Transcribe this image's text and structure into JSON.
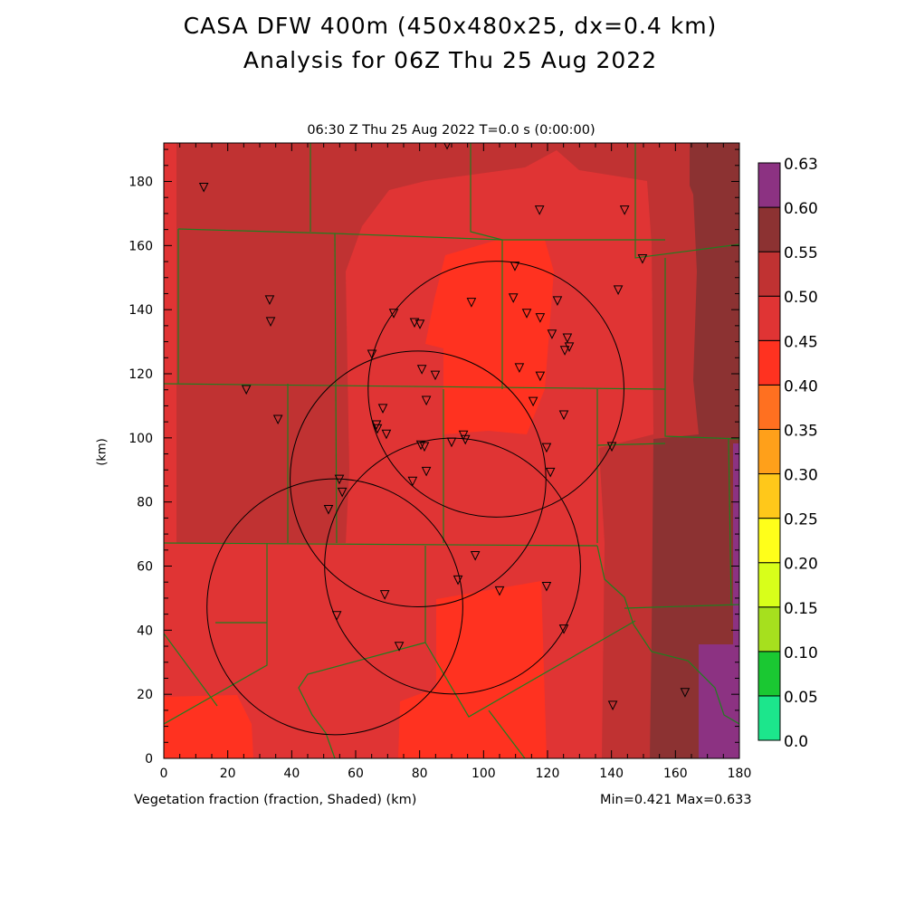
{
  "title_line1": "CASA DFW 400m (450x480x25, dx=0.4 km)",
  "title_line2": "Analysis for 06Z Thu 25 Aug 2022",
  "subtitle": "06:30 Z Thu 25 Aug 2022   T=0.0 s (0:00:00)",
  "chart_data": {
    "type": "heatmap",
    "title": "CASA DFW 400m (450x480x25, dx=0.4 km) Analysis for 06Z Thu 25 Aug 2022",
    "xlabel": "Vegetation fraction (fraction, Shaded)  (km)",
    "ylabel": "(km)",
    "xlim": [
      0,
      180
    ],
    "ylim": [
      0,
      192
    ],
    "x_ticks": [
      0,
      20,
      40,
      60,
      80,
      100,
      120,
      140,
      160,
      180
    ],
    "y_ticks": [
      0,
      20,
      40,
      60,
      80,
      100,
      120,
      140,
      160,
      180
    ],
    "x_tick_labels": [
      "0",
      "20",
      "40",
      "60",
      "80",
      "100",
      "120",
      "140",
      "160",
      "180"
    ],
    "y_tick_labels": [
      "0",
      "20",
      "40",
      "60",
      "80",
      "100",
      "120",
      "140",
      "160",
      "180"
    ],
    "min_max_text": "Min=0.421 Max=0.633",
    "min": 0.421,
    "max": 0.633,
    "colorbar": {
      "labels": [
        "0.0",
        "0.05",
        "0.10",
        "0.15",
        "0.20",
        "0.25",
        "0.30",
        "0.35",
        "0.40",
        "0.45",
        "0.50",
        "0.55",
        "0.60",
        "0.63"
      ],
      "colors": [
        "#1ce68c",
        "#1ac832",
        "#a6e01e",
        "#d8ff1a",
        "#ffff1a",
        "#ffc81a",
        "#ffa01a",
        "#ff7020",
        "#ff3220",
        "#e03434",
        "#c03232",
        "#8c3232",
        "#8c3282"
      ]
    },
    "radar_rings_km": [
      {
        "x": 103.9,
        "y": 115.2,
        "r": 40
      },
      {
        "x": 79.5,
        "y": 87.2,
        "r": 40
      },
      {
        "x": 90.3,
        "y": 60.0,
        "r": 40
      },
      {
        "x": 53.5,
        "y": 47.3,
        "r": 40
      }
    ],
    "stations_km": [
      [
        12.5,
        178.3
      ],
      [
        33.1,
        143.2
      ],
      [
        33.4,
        136.4
      ],
      [
        25.8,
        115.2
      ],
      [
        35.7,
        105.9
      ],
      [
        65.1,
        126.2
      ],
      [
        71.9,
        139.0
      ],
      [
        78.4,
        136.1
      ],
      [
        80.1,
        135.6
      ],
      [
        80.7,
        121.5
      ],
      [
        84.9,
        119.7
      ],
      [
        82.1,
        111.8
      ],
      [
        68.5,
        109.3
      ],
      [
        66.5,
        104.2
      ],
      [
        66.8,
        103.0
      ],
      [
        69.6,
        101.3
      ],
      [
        80.4,
        97.9
      ],
      [
        81.5,
        97.4
      ],
      [
        82.1,
        89.7
      ],
      [
        77.8,
        86.6
      ],
      [
        54.9,
        87.2
      ],
      [
        55.8,
        83.2
      ],
      [
        51.5,
        77.8
      ],
      [
        90.0,
        98.8
      ],
      [
        93.7,
        101.0
      ],
      [
        94.3,
        99.6
      ],
      [
        96.2,
        142.4
      ],
      [
        109.3,
        143.8
      ],
      [
        109.8,
        153.7
      ],
      [
        113.5,
        139.0
      ],
      [
        117.5,
        171.2
      ],
      [
        117.7,
        137.6
      ],
      [
        121.4,
        132.5
      ],
      [
        123.1,
        142.9
      ],
      [
        126.2,
        131.3
      ],
      [
        126.8,
        128.5
      ],
      [
        125.4,
        127.4
      ],
      [
        111.2,
        122.0
      ],
      [
        117.7,
        119.4
      ],
      [
        115.5,
        111.5
      ],
      [
        125.1,
        107.3
      ],
      [
        119.7,
        97.1
      ],
      [
        120.9,
        89.4
      ],
      [
        144.1,
        171.2
      ],
      [
        142.1,
        146.3
      ],
      [
        149.7,
        156.0
      ],
      [
        140.1,
        97.4
      ],
      [
        88.6,
        191.6
      ],
      [
        97.4,
        63.4
      ],
      [
        92.0,
        55.8
      ],
      [
        105.0,
        52.4
      ],
      [
        119.7,
        53.8
      ],
      [
        125.1,
        40.5
      ],
      [
        69.1,
        51.2
      ],
      [
        54.1,
        44.7
      ],
      [
        73.6,
        35.1
      ],
      [
        140.4,
        16.7
      ],
      [
        163.0,
        20.7
      ]
    ]
  }
}
